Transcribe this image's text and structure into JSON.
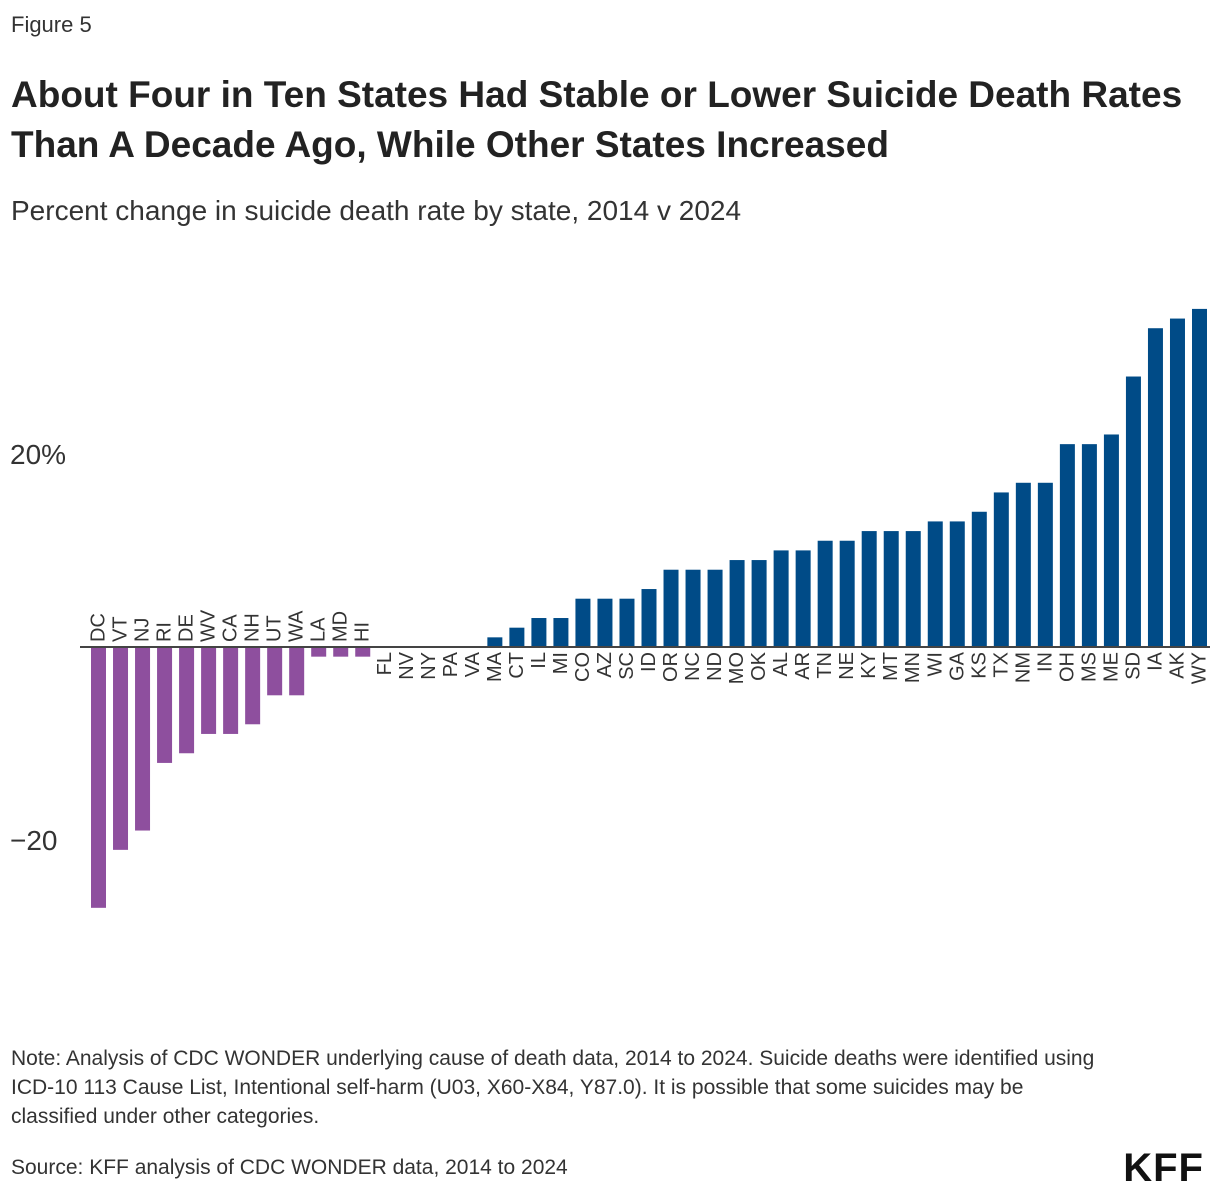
{
  "figure_label": "Figure 5",
  "title": "About Four in Ten States Had Stable or Lower Suicide Death Rates Than A Decade Ago, While Other States Increased",
  "subtitle": "Percent change in suicide death rate by state, 2014 v 2024",
  "note": "Note: Analysis of CDC WONDER underlying cause of death data, 2014 to 2024. Suicide deaths were identified using ICD-10 113 Cause List, Intentional self-harm (U03, X60-X84, Y87.0). It is possible that some suicides may be classified under other categories.",
  "source": "Source: KFF analysis of CDC WONDER data, 2014 to 2024",
  "logo": "KFF",
  "colors": {
    "negative": "#8e4f9e",
    "positive": "#004b87",
    "axis": "#444444"
  },
  "chart_data": {
    "type": "bar",
    "title": "",
    "xlabel": "",
    "ylabel": "",
    "ylim": [
      -28,
      36
    ],
    "y_ticks": [
      {
        "value": 20,
        "label": "20%"
      },
      {
        "value": -20,
        "label": "−20"
      }
    ],
    "grid": false,
    "categories": [
      "DC",
      "VT",
      "NJ",
      "RI",
      "DE",
      "WV",
      "CA",
      "NH",
      "UT",
      "WA",
      "LA",
      "MD",
      "HI",
      "FL",
      "NV",
      "NY",
      "PA",
      "VA",
      "MA",
      "CT",
      "IL",
      "MI",
      "CO",
      "AZ",
      "SC",
      "ID",
      "OR",
      "NC",
      "ND",
      "MO",
      "OK",
      "AL",
      "AR",
      "TN",
      "NE",
      "KY",
      "MT",
      "MN",
      "WI",
      "GA",
      "KS",
      "TX",
      "NM",
      "IN",
      "OH",
      "MS",
      "ME",
      "SD",
      "IA",
      "AK",
      "WY"
    ],
    "values": [
      -27,
      -21,
      -19,
      -12,
      -11,
      -9,
      -9,
      -8,
      -5,
      -5,
      -1,
      -1,
      -1,
      0,
      0,
      0,
      0,
      0,
      1,
      2,
      3,
      3,
      5,
      5,
      5,
      6,
      8,
      8,
      8,
      9,
      9,
      10,
      10,
      11,
      11,
      12,
      12,
      12,
      13,
      13,
      14,
      16,
      17,
      17,
      21,
      21,
      22,
      28,
      33,
      34,
      35
    ]
  }
}
